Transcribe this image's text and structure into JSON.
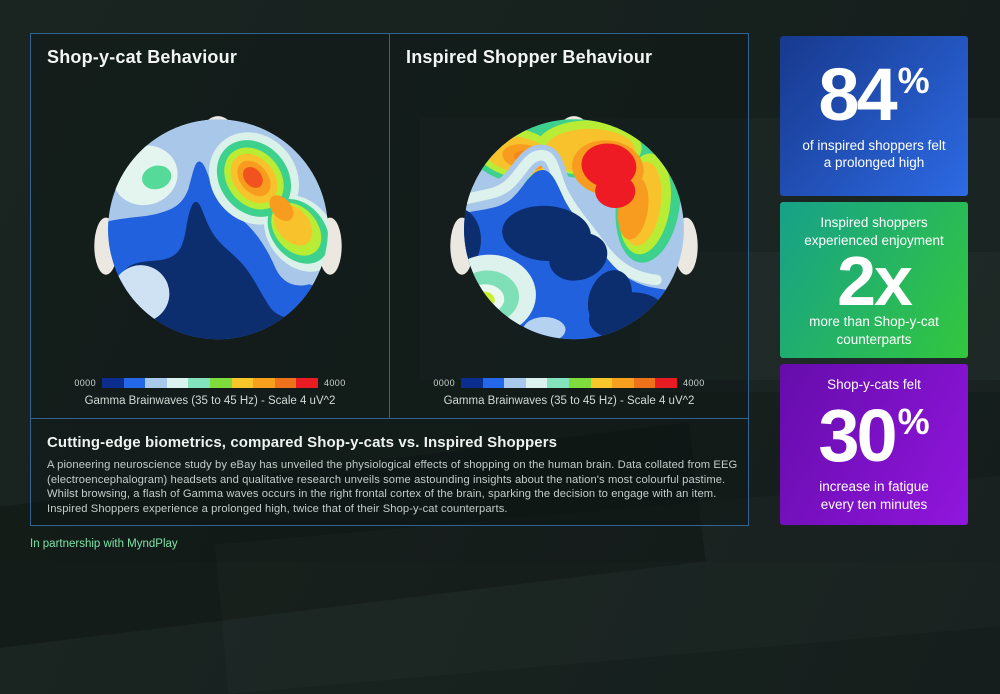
{
  "panels": {
    "left": {
      "title": "Shop-y-cat Behaviour",
      "scale_min": "0000",
      "scale_max": "4000",
      "caption": "Gamma Brainwaves (35 to 45 Hz) - Scale 4 uV^2"
    },
    "right": {
      "title": "Inspired Shopper Behaviour",
      "scale_min": "0000",
      "scale_max": "4000",
      "caption": "Gamma Brainwaves (35 to 45 Hz) - Scale 4 uV^2"
    }
  },
  "colormap": [
    "#0b2d8e",
    "#2268e8",
    "#a9c9ec",
    "#dcf2ee",
    "#82e3bd",
    "#7edc3c",
    "#f6c62b",
    "#f7a01e",
    "#f0711c",
    "#ea1c23"
  ],
  "summary": {
    "heading": "Cutting-edge biometrics, compared Shop-y-cats vs. Inspired Shoppers",
    "body": "A pioneering neuroscience study by eBay has unveiled the physiological effects of shopping on the human brain. Data collated from EEG (electroencephalogram) headsets and qualitative research unveils some astounding insights about the nation's most colourful pastime. Whilst browsing, a flash of Gamma waves occurs in the right frontal cortex of the brain, sparking the decision to engage with an item. Inspired Shoppers experience a prolonged high, twice that of their Shop-y-cat counterparts."
  },
  "footer": {
    "text": "In partnership with MyndPlay",
    "color": "#7ce4a6"
  },
  "stats": [
    {
      "value": "84",
      "unit": "%",
      "caption": "of inspired shoppers felt a prolonged high",
      "gradient": {
        "angle": "130deg",
        "from": "#17398d",
        "to": "#2d6ae4"
      }
    },
    {
      "top": "Inspired shoppers experienced enjoyment",
      "value": "2x",
      "unit": "",
      "caption": "more than Shop-y-cat counterparts",
      "gradient": {
        "angle": "120deg",
        "from": "#17a189",
        "to": "#33c73e"
      }
    },
    {
      "top": "Shop-y-cats felt",
      "value": "30",
      "unit": "%",
      "caption": "increase in fatigue every ten minutes",
      "gradient": {
        "angle": "120deg",
        "from": "#650cab",
        "to": "#9116dd"
      }
    }
  ],
  "chart_data": [
    {
      "type": "heatmap",
      "title": "Shop-y-cat Behaviour",
      "data_kind": "EEG scalp topography, head viewed from above, nose at top",
      "legend": {
        "label": "Gamma Brainwaves (35 to 45 Hz) - Scale 4 uV^2",
        "min": 0,
        "max": 4000,
        "min_label": "0000",
        "max_label": "4000"
      },
      "regions": [
        {
          "region": "right frontal cortex hotspot core",
          "approx_value": 3400,
          "band": "orange-red"
        },
        {
          "region": "right fronto-temporal elongation",
          "approx_value": 2700,
          "band": "orange-yellow"
        },
        {
          "region": "ring around right frontal hotspot",
          "approx_value": 1800,
          "band": "green / mint"
        },
        {
          "region": "left frontal pocket",
          "approx_value": 1400,
          "band": "mint core on pale cyan"
        },
        {
          "region": "frontal rim",
          "approx_value": 900,
          "band": "light blue"
        },
        {
          "region": "central and posterior scalp",
          "approx_value": 250,
          "band": "dark navy"
        },
        {
          "region": "lower-left pocket",
          "approx_value": 1000,
          "band": "pale blue"
        }
      ]
    },
    {
      "type": "heatmap",
      "title": "Inspired Shopper Behaviour",
      "data_kind": "EEG scalp topography, head viewed from above, nose at top",
      "legend": {
        "label": "Gamma Brainwaves (35 to 45 Hz) - Scale 4 uV^2",
        "min": 0,
        "max": 4000,
        "min_label": "0000",
        "max_label": "4000"
      },
      "regions": [
        {
          "region": "right frontal cortex hotspot core",
          "approx_value": 4000,
          "band": "red"
        },
        {
          "region": "left frontal lobe core",
          "approx_value": 3000,
          "band": "orange"
        },
        {
          "region": "frontal band across scalp",
          "approx_value": 2400,
          "band": "yellow-green"
        },
        {
          "region": "mid-scalp transition band",
          "approx_value": 1200,
          "band": "pale cyan"
        },
        {
          "region": "central and bottom-right blobs",
          "approx_value": 250,
          "band": "dark navy"
        },
        {
          "region": "left occipital pocket core",
          "approx_value": 2100,
          "band": "chartreuse with mint ring"
        }
      ]
    }
  ]
}
